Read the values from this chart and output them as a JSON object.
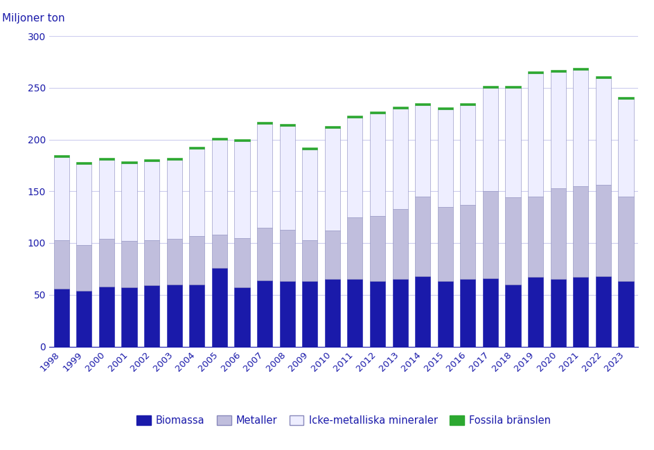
{
  "years": [
    1998,
    1999,
    2000,
    2001,
    2002,
    2003,
    2004,
    2005,
    2006,
    2007,
    2008,
    2009,
    2010,
    2011,
    2012,
    2013,
    2014,
    2015,
    2016,
    2017,
    2018,
    2019,
    2020,
    2021,
    2022,
    2023
  ],
  "biomassa": [
    56,
    54,
    58,
    57,
    59,
    60,
    60,
    76,
    57,
    64,
    63,
    63,
    65,
    65,
    63,
    65,
    68,
    63,
    65,
    66,
    60,
    67,
    65,
    67,
    68,
    63
  ],
  "metaller": [
    47,
    44,
    46,
    45,
    44,
    44,
    47,
    32,
    48,
    51,
    50,
    40,
    47,
    60,
    63,
    68,
    77,
    72,
    72,
    84,
    84,
    78,
    88,
    88,
    88,
    82
  ],
  "icke_metalliska": [
    80,
    78,
    76,
    75,
    76,
    76,
    84,
    92,
    93,
    100,
    100,
    87,
    99,
    96,
    99,
    97,
    88,
    94,
    96,
    100,
    106,
    119,
    112,
    112,
    103,
    94
  ],
  "fossila": [
    2,
    2,
    2,
    2,
    2,
    2,
    2,
    2,
    2,
    2,
    2,
    2,
    2,
    2,
    2,
    2,
    2,
    2,
    2,
    2,
    2,
    2,
    2,
    2,
    2,
    2
  ],
  "color_biomassa": "#1a1aaa",
  "color_metaller": "#c0bedd",
  "color_icke_metalliska": "#eeeeff",
  "color_fossila": "#2ca830",
  "bar_edge_color": "#8888bb",
  "ylabel": "Miljoner ton",
  "ylim": [
    0,
    300
  ],
  "yticks": [
    0,
    50,
    100,
    150,
    200,
    250,
    300
  ],
  "legend_labels": [
    "Biomassa",
    "Metaller",
    "Icke-metalliska mineraler",
    "Fossila bränslen"
  ],
  "text_color": "#1a1aaa",
  "background_color": "#ffffff",
  "grid_color": "#ccccee"
}
